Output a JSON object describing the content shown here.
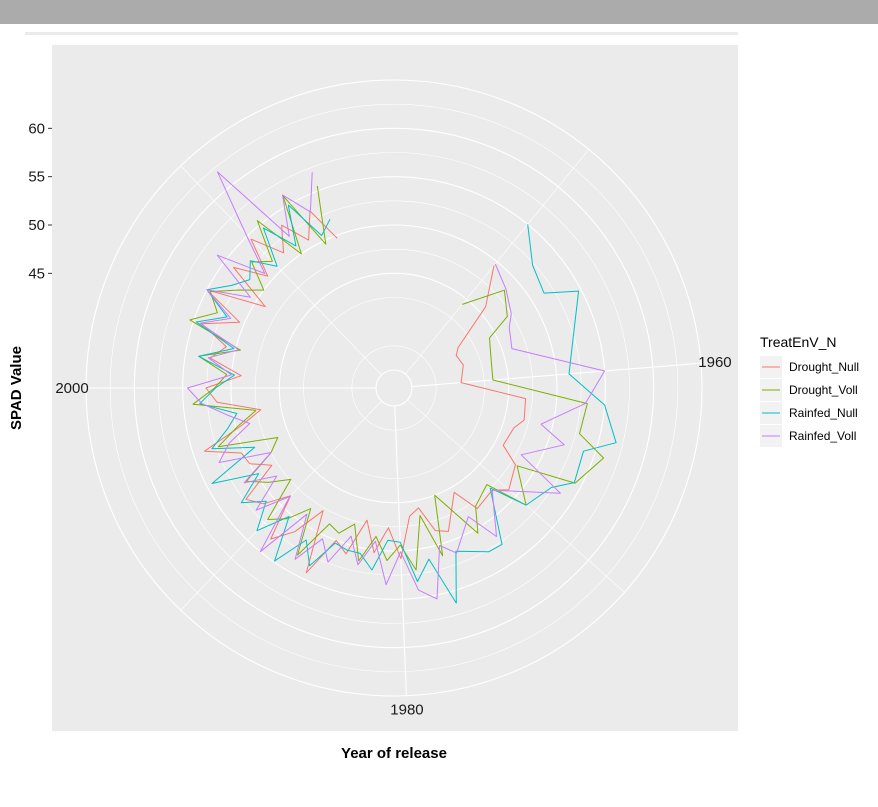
{
  "chart_data": {
    "type": "line",
    "coord": "polar",
    "xlabel": "Year of release",
    "ylabel": "SPAD Value",
    "theta_ticks": [
      {
        "label": "1960",
        "value": 1960
      },
      {
        "label": "1980",
        "value": 1980
      },
      {
        "label": "2000",
        "value": 2000
      }
    ],
    "r_ticks": [
      {
        "label": "45",
        "value": 45
      },
      {
        "label": "50",
        "value": 50
      },
      {
        "label": "55",
        "value": 55
      },
      {
        "label": "60",
        "value": 60
      }
    ],
    "r_range": [
      35,
      65
    ],
    "theta_range": [
      1941.5,
      2019.5
    ],
    "grid": true,
    "legend": {
      "title": "TreatEnV_N",
      "position": "right",
      "entries": [
        "Drought_Null",
        "Drought_Voll",
        "Rainfed_Null",
        "Rainfed_Voll"
      ]
    },
    "colors": {
      "Drought_Null": "#F8766D",
      "Drought_Voll": "#7CAE00",
      "Rainfed_Null": "#00BFC4",
      "Rainfed_Voll": "#C77CFF",
      "panel": "#ebebeb",
      "grid": "#ffffff"
    },
    "series": [
      {
        "name": "Drought_Null",
        "x": [
          1950,
          1952,
          1954,
          1955,
          1957,
          1960,
          1962,
          1964,
          1965,
          1967,
          1968,
          1970,
          1971,
          1973,
          1974,
          1976,
          1977,
          1978,
          1979,
          1980,
          1981,
          1982,
          1983,
          1984,
          1985,
          1986,
          1987,
          1988,
          1989,
          1990,
          1991,
          1992,
          1993,
          1994,
          1995,
          1996,
          1997,
          1998,
          1999,
          2000,
          2001,
          2002,
          2003,
          2004,
          2005,
          2006,
          2007,
          2008,
          2009,
          2010,
          2011,
          2012,
          2013,
          2014,
          2015
        ],
        "y": [
          49.5,
          45.8,
          41.0,
          40.4,
          40.7,
          40.1,
          46.8,
          47.0,
          46.2,
          45.9,
          48.0,
          49.0,
          47.8,
          48.3,
          45.6,
          49.0,
          48.5,
          45.8,
          46.5,
          50.8,
          47.6,
          50.3,
          47.1,
          51.0,
          50.0,
          54.3,
          47.8,
          51.2,
          53.3,
          48.6,
          51.2,
          52.3,
          48.1,
          50.0,
          50.3,
          53.8,
          49.4,
          47.1,
          51.5,
          52.6,
          49.0,
          52.4,
          51.0,
          54.1,
          50.5,
          55.0,
          48.9,
          53.9,
          50.6,
          54.5,
          51.2,
          53.6,
          50.8,
          53.4,
          49.7
        ]
      },
      {
        "name": "Drought_Voll",
        "x": [
          1950,
          1952,
          1954,
          1955,
          1957,
          1960,
          1962,
          1964,
          1965,
          1967,
          1968,
          1970,
          1971,
          1973,
          1974,
          1976,
          1977,
          1978,
          1979,
          1980,
          1981,
          1982,
          1983,
          1984,
          1985,
          1986,
          1987,
          1988,
          1989,
          1990,
          1991,
          1992,
          1993,
          1994,
          1995,
          1996,
          1997,
          1998,
          1999,
          2000,
          2001,
          2002,
          2003,
          2004,
          2005,
          2006,
          2007,
          2008,
          2009,
          2010,
          2011,
          2012,
          2013,
          2014,
          2015
        ],
        "y": [
          44.3,
          48.4,
          47.0,
          44.3,
          43.7,
          43.4,
          53.2,
          52.9,
          56.0,
          54.3,
          48.2,
          51.4,
          47.0,
          48.0,
          50.5,
          45.0,
          51.2,
          46.6,
          52.1,
          49.4,
          51.0,
          48.6,
          51.4,
          47.8,
          49.2,
          48.7,
          53.1,
          48.3,
          50.6,
          52.0,
          47.4,
          49.4,
          51.2,
          47.5,
          46.2,
          52.3,
          49.8,
          47.6,
          54.0,
          51.7,
          50.5,
          53.6,
          49.5,
          55.4,
          53.0,
          54.6,
          52.1,
          50.0,
          52.8,
          51.3,
          55.5,
          50.0,
          56.1,
          49.6,
          55.5
        ]
      },
      {
        "name": "Rainfed_Null",
        "x": [
          1950,
          1952,
          1954,
          1955,
          1957,
          1960,
          1962,
          1964,
          1965,
          1967,
          1968,
          1970,
          1971,
          1973,
          1974,
          1976,
          1977,
          1978,
          1979,
          1980,
          1981,
          1982,
          1983,
          1984,
          1985,
          1986,
          1987,
          1988,
          1989,
          1990,
          1991,
          1992,
          1993,
          1994,
          1995,
          1996,
          1997,
          1998,
          1999,
          2000,
          2001,
          2002,
          2003,
          2004,
          2005,
          2006,
          2007,
          2008,
          2009,
          2010,
          2011,
          2012,
          2013,
          2014,
          2015
        ],
        "y": [
          55.0,
          52.3,
          51.5,
          54.7,
          52.8,
          51.3,
          55.0,
          56.8,
          53.8,
          54.2,
          52.4,
          51.4,
          47.5,
          52.8,
          52.7,
          51.2,
          56.3,
          51.2,
          53.3,
          49.1,
          48.9,
          52.1,
          50.6,
          50.6,
          50.3,
          53.5,
          51.3,
          54.9,
          50.3,
          53.6,
          50.8,
          52.9,
          49.7,
          54.4,
          48.8,
          53.0,
          50.9,
          49.6,
          53.3,
          51.6,
          49.7,
          53.6,
          50.2,
          54.7,
          51.9,
          55.0,
          53.0,
          51.8,
          53.0,
          50.6,
          54.5,
          51.0,
          55.0,
          50.6,
          51.8
        ]
      },
      {
        "name": "Rainfed_Voll",
        "x": [
          1950,
          1952,
          1954,
          1955,
          1957,
          1960,
          1962,
          1964,
          1965,
          1967,
          1968,
          1970,
          1971,
          1973,
          1974,
          1976,
          1977,
          1978,
          1979,
          1980,
          1981,
          1982,
          1983,
          1984,
          1985,
          1986,
          1987,
          1988,
          1989,
          1990,
          1991,
          1992,
          1993,
          1994,
          1995,
          1996,
          1997,
          1998,
          1999,
          2000,
          2001,
          2002,
          2003,
          2004,
          2005,
          2006,
          2007,
          2008,
          2009,
          2010,
          2011,
          2012,
          2013,
          2014,
          2015
        ],
        "y": [
          49.7,
          48.6,
          47.5,
          46.6,
          46.0,
          55.0,
          53.0,
          48.8,
          51.7,
          48.0,
          53.5,
          49.2,
          47.8,
          51.8,
          48.5,
          51.4,
          50.1,
          55.4,
          54.2,
          50.1,
          53.5,
          49.1,
          51.8,
          49.1,
          52.4,
          50.4,
          53.6,
          49.0,
          55.0,
          48.7,
          52.2,
          48.3,
          51.5,
          47.5,
          52.8,
          51.1,
          48.5,
          50.6,
          53.1,
          54.5,
          50.0,
          52.6,
          49.7,
          54.3,
          51.5,
          55.0,
          50.7,
          56.0,
          51.0,
          55.3,
          62.0,
          52.2,
          56.2,
          53.3,
          57.0
        ]
      }
    ]
  }
}
